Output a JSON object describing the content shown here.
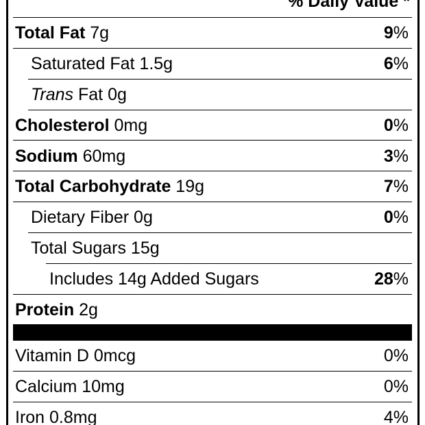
{
  "header": {
    "daily_value": "% Daily Value *"
  },
  "nutrients": {
    "total_fat": {
      "label": "Total Fat",
      "amount": " 7g",
      "dv_num": "9",
      "dv_sym": "%"
    },
    "saturated_fat": {
      "label": "Saturated Fat 1.5g",
      "dv_num": "6",
      "dv_sym": "%"
    },
    "trans_fat": {
      "label_italic": "Trans",
      "label_rest": " Fat 0g"
    },
    "cholesterol": {
      "label": "Cholesterol",
      "amount": " 0mg",
      "dv_num": "0",
      "dv_sym": "%"
    },
    "sodium": {
      "label": "Sodium",
      "amount": " 60mg",
      "dv_num": "3",
      "dv_sym": "%"
    },
    "total_carbohydrate": {
      "label": "Total Carbohydrate",
      "amount": " 19g",
      "dv_num": "7",
      "dv_sym": "%"
    },
    "dietary_fiber": {
      "label": "Dietary Fiber 0g",
      "dv_num": "0",
      "dv_sym": "%"
    },
    "total_sugars": {
      "label": "Total Sugars 15g"
    },
    "added_sugars": {
      "label": "Includes 14g Added Sugars",
      "dv_num": "28",
      "dv_sym": "%"
    },
    "protein": {
      "label": "Protein",
      "amount": " 2g"
    }
  },
  "vitamins": {
    "vitamin_d": {
      "label": "Vitamin D 0mcg",
      "dv": "0%"
    },
    "calcium": {
      "label": "Calcium 10mg",
      "dv": "0%"
    },
    "iron": {
      "label": "Iron 0.8mg",
      "dv": "4%"
    }
  },
  "colors": {
    "ink": "#000000",
    "background": "#ffffff"
  }
}
